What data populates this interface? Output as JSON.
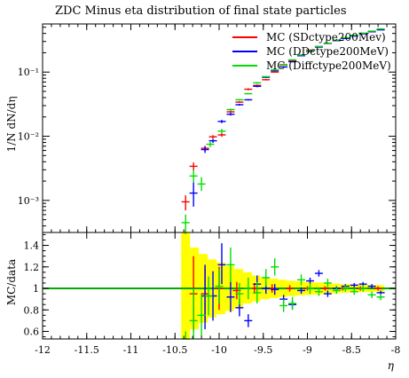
{
  "chart_data": {
    "type": "line",
    "title": "ZDC Minus eta distribution of final state particles",
    "main": {
      "ylabel": "1/N dN/dη",
      "yscale": "log",
      "ylim_log10": [
        -3.5,
        -0.25
      ],
      "ytick_labels": [
        {
          "v": -3,
          "label": "10⁻³"
        },
        {
          "v": -2,
          "label": "10⁻²"
        },
        {
          "v": -1,
          "label": "10⁻¹"
        }
      ]
    },
    "ratio": {
      "ylabel": "MC/data",
      "ylim": [
        0.53,
        1.52
      ],
      "yticks": [
        0.6,
        0.8,
        1,
        1.2,
        1.4
      ],
      "ytick_labels": [
        "0.6",
        "0.8",
        "1",
        "1.2",
        "1.4"
      ]
    },
    "x": {
      "label": "η",
      "xlim": [
        -12,
        -8
      ],
      "ticks": [
        -12,
        -11.5,
        -11,
        -10.5,
        -10,
        -9.5,
        -9,
        -8.5,
        -8
      ],
      "tick_labels": [
        "-12",
        "-11.5",
        "-11",
        "-10.5",
        "-10",
        "-9.5",
        "-9",
        "-8.5",
        "-8"
      ]
    },
    "colors": {
      "sd": "#ff0000",
      "dd": "#0000ff",
      "diff": "#00dd00",
      "band": "#ffff00",
      "unity": "#00aa00"
    },
    "series": [
      {
        "name": "MC (SDctype200Mev)",
        "key": "sd",
        "points": [
          {
            "x": -10.38,
            "y": 0.00095,
            "lo": 0.0007,
            "hi": 0.0012
          },
          {
            "x": -10.29,
            "y": 0.0034,
            "lo": 0.0029,
            "hi": 0.0039
          },
          {
            "x": -10.16,
            "y": 0.0065,
            "lo": 0.0059,
            "hi": 0.0071
          },
          {
            "x": -10.07,
            "y": 0.0098,
            "lo": 0.0092,
            "hi": 0.0104
          },
          {
            "x": -9.97,
            "y": 0.0105,
            "lo": 0.0098,
            "hi": 0.0112
          },
          {
            "x": -9.87,
            "y": 0.024,
            "lo": 0.023,
            "hi": 0.025
          },
          {
            "x": -9.77,
            "y": 0.034,
            "lo": 0.033,
            "hi": 0.035
          },
          {
            "x": -9.67,
            "y": 0.054,
            "lo": 0.052,
            "hi": 0.056
          },
          {
            "x": -9.57,
            "y": 0.062,
            "lo": 0.06,
            "hi": 0.064
          },
          {
            "x": -9.47,
            "y": 0.076,
            "lo": 0.074,
            "hi": 0.078
          },
          {
            "x": -9.37,
            "y": 0.1,
            "lo": 0.098,
            "hi": 0.102
          },
          {
            "x": -9.27,
            "y": 0.13,
            "lo": 0.128,
            "hi": 0.132
          },
          {
            "x": -9.17,
            "y": 0.15,
            "lo": 0.148,
            "hi": 0.152
          },
          {
            "x": -9.07,
            "y": 0.18,
            "lo": 0.178,
            "hi": 0.182
          },
          {
            "x": -8.97,
            "y": 0.22,
            "lo": 0.218,
            "hi": 0.222
          },
          {
            "x": -8.87,
            "y": 0.25,
            "lo": 0.248,
            "hi": 0.252
          },
          {
            "x": -8.77,
            "y": 0.28,
            "lo": 0.278,
            "hi": 0.282
          },
          {
            "x": -8.67,
            "y": 0.31,
            "lo": 0.308,
            "hi": 0.312
          },
          {
            "x": -8.57,
            "y": 0.34,
            "lo": 0.338,
            "hi": 0.342
          },
          {
            "x": -8.47,
            "y": 0.37,
            "lo": 0.368,
            "hi": 0.372
          },
          {
            "x": -8.37,
            "y": 0.4,
            "lo": 0.398,
            "hi": 0.402
          },
          {
            "x": -8.27,
            "y": 0.43,
            "lo": 0.428,
            "hi": 0.432
          },
          {
            "x": -8.17,
            "y": 0.46,
            "lo": 0.458,
            "hi": 0.462
          }
        ]
      },
      {
        "name": "MC (DDctype200MeV)",
        "key": "dd",
        "points": [
          {
            "x": -10.29,
            "y": 0.0013,
            "lo": 0.0008,
            "hi": 0.0019
          },
          {
            "x": -10.16,
            "y": 0.0062,
            "lo": 0.0055,
            "hi": 0.0069
          },
          {
            "x": -10.07,
            "y": 0.0085,
            "lo": 0.0079,
            "hi": 0.0091
          },
          {
            "x": -9.97,
            "y": 0.017,
            "lo": 0.016,
            "hi": 0.018
          },
          {
            "x": -9.87,
            "y": 0.022,
            "lo": 0.021,
            "hi": 0.023
          },
          {
            "x": -9.77,
            "y": 0.031,
            "lo": 0.03,
            "hi": 0.032
          },
          {
            "x": -9.67,
            "y": 0.037,
            "lo": 0.036,
            "hi": 0.038
          },
          {
            "x": -9.57,
            "y": 0.06,
            "lo": 0.058,
            "hi": 0.062
          },
          {
            "x": -9.47,
            "y": 0.083,
            "lo": 0.081,
            "hi": 0.085
          },
          {
            "x": -9.37,
            "y": 0.105,
            "lo": 0.103,
            "hi": 0.107
          },
          {
            "x": -9.27,
            "y": 0.12,
            "lo": 0.118,
            "hi": 0.122
          },
          {
            "x": -9.17,
            "y": 0.145,
            "lo": 0.143,
            "hi": 0.147
          },
          {
            "x": -9.07,
            "y": 0.18,
            "lo": 0.178,
            "hi": 0.182
          },
          {
            "x": -8.97,
            "y": 0.21,
            "lo": 0.208,
            "hi": 0.212
          },
          {
            "x": -8.87,
            "y": 0.245,
            "lo": 0.243,
            "hi": 0.247
          },
          {
            "x": -8.77,
            "y": 0.28,
            "lo": 0.278,
            "hi": 0.282
          },
          {
            "x": -8.67,
            "y": 0.31,
            "lo": 0.308,
            "hi": 0.312
          },
          {
            "x": -8.57,
            "y": 0.335,
            "lo": 0.333,
            "hi": 0.337
          },
          {
            "x": -8.47,
            "y": 0.365,
            "lo": 0.363,
            "hi": 0.367
          },
          {
            "x": -8.37,
            "y": 0.395,
            "lo": 0.393,
            "hi": 0.397
          },
          {
            "x": -8.27,
            "y": 0.425,
            "lo": 0.423,
            "hi": 0.427
          },
          {
            "x": -8.17,
            "y": 0.455,
            "lo": 0.453,
            "hi": 0.457
          }
        ]
      },
      {
        "name": "MC (Diffctype200MeV)",
        "key": "diff",
        "points": [
          {
            "x": -10.38,
            "y": 0.00045,
            "lo": 0.0003,
            "hi": 0.0006
          },
          {
            "x": -10.29,
            "y": 0.0024,
            "lo": 0.0019,
            "hi": 0.003
          },
          {
            "x": -10.2,
            "y": 0.0018,
            "lo": 0.0014,
            "hi": 0.0023
          },
          {
            "x": -10.1,
            "y": 0.0075,
            "lo": 0.0068,
            "hi": 0.0082
          },
          {
            "x": -9.97,
            "y": 0.012,
            "lo": 0.011,
            "hi": 0.013
          },
          {
            "x": -9.87,
            "y": 0.026,
            "lo": 0.025,
            "hi": 0.027
          },
          {
            "x": -9.77,
            "y": 0.037,
            "lo": 0.036,
            "hi": 0.038
          },
          {
            "x": -9.67,
            "y": 0.046,
            "lo": 0.045,
            "hi": 0.047
          },
          {
            "x": -9.57,
            "y": 0.068,
            "lo": 0.066,
            "hi": 0.07
          },
          {
            "x": -9.47,
            "y": 0.085,
            "lo": 0.083,
            "hi": 0.087
          },
          {
            "x": -9.37,
            "y": 0.108,
            "lo": 0.106,
            "hi": 0.11
          },
          {
            "x": -9.27,
            "y": 0.128,
            "lo": 0.126,
            "hi": 0.13
          },
          {
            "x": -9.17,
            "y": 0.155,
            "lo": 0.153,
            "hi": 0.157
          },
          {
            "x": -9.07,
            "y": 0.185,
            "lo": 0.183,
            "hi": 0.187
          },
          {
            "x": -8.97,
            "y": 0.215,
            "lo": 0.213,
            "hi": 0.217
          },
          {
            "x": -8.87,
            "y": 0.25,
            "lo": 0.248,
            "hi": 0.252
          },
          {
            "x": -8.77,
            "y": 0.282,
            "lo": 0.28,
            "hi": 0.284
          },
          {
            "x": -8.67,
            "y": 0.315,
            "lo": 0.313,
            "hi": 0.317
          },
          {
            "x": -8.57,
            "y": 0.345,
            "lo": 0.343,
            "hi": 0.347
          },
          {
            "x": -8.47,
            "y": 0.375,
            "lo": 0.373,
            "hi": 0.377
          },
          {
            "x": -8.37,
            "y": 0.405,
            "lo": 0.403,
            "hi": 0.407
          },
          {
            "x": -8.27,
            "y": 0.435,
            "lo": 0.433,
            "hi": 0.437
          },
          {
            "x": -8.17,
            "y": 0.47,
            "lo": 0.468,
            "hi": 0.472
          }
        ]
      }
    ],
    "ratio_band": [
      {
        "x0": -10.43,
        "x1": -10.33,
        "lo": 0.53,
        "hi": 1.52
      },
      {
        "x0": -10.33,
        "x1": -10.23,
        "lo": 0.62,
        "hi": 1.38
      },
      {
        "x0": -10.23,
        "x1": -10.13,
        "lo": 0.68,
        "hi": 1.32
      },
      {
        "x0": -10.13,
        "x1": -10.03,
        "lo": 0.73,
        "hi": 1.27
      },
      {
        "x0": -10.03,
        "x1": -9.93,
        "lo": 0.76,
        "hi": 1.24
      },
      {
        "x0": -9.93,
        "x1": -9.83,
        "lo": 0.79,
        "hi": 1.21
      },
      {
        "x0": -9.83,
        "x1": -9.73,
        "lo": 0.82,
        "hi": 1.18
      },
      {
        "x0": -9.73,
        "x1": -9.63,
        "lo": 0.86,
        "hi": 1.15
      },
      {
        "x0": -9.63,
        "x1": -9.53,
        "lo": 0.88,
        "hi": 1.12
      },
      {
        "x0": -9.53,
        "x1": -9.43,
        "lo": 0.9,
        "hi": 1.1
      },
      {
        "x0": -9.43,
        "x1": -9.33,
        "lo": 0.91,
        "hi": 1.09
      },
      {
        "x0": -9.33,
        "x1": -9.23,
        "lo": 0.92,
        "hi": 1.08
      },
      {
        "x0": -9.23,
        "x1": -9.13,
        "lo": 0.93,
        "hi": 1.07
      },
      {
        "x0": -9.13,
        "x1": -9.03,
        "lo": 0.935,
        "hi": 1.065
      },
      {
        "x0": -9.03,
        "x1": -8.93,
        "lo": 0.94,
        "hi": 1.06
      },
      {
        "x0": -8.93,
        "x1": -8.83,
        "lo": 0.945,
        "hi": 1.055
      },
      {
        "x0": -8.83,
        "x1": -8.73,
        "lo": 0.95,
        "hi": 1.05
      },
      {
        "x0": -8.73,
        "x1": -8.63,
        "lo": 0.955,
        "hi": 1.045
      },
      {
        "x0": -8.63,
        "x1": -8.53,
        "lo": 0.96,
        "hi": 1.04
      },
      {
        "x0": -8.53,
        "x1": -8.43,
        "lo": 0.962,
        "hi": 1.038
      },
      {
        "x0": -8.43,
        "x1": -8.33,
        "lo": 0.965,
        "hi": 1.035
      },
      {
        "x0": -8.33,
        "x1": -8.23,
        "lo": 0.968,
        "hi": 1.032
      },
      {
        "x0": -8.23,
        "x1": -8.13,
        "lo": 0.97,
        "hi": 1.03
      }
    ],
    "ratio_series": [
      {
        "key": "sd",
        "points": [
          {
            "x": -10.29,
            "y": 0.95,
            "lo": 0.6,
            "hi": 1.3
          },
          {
            "x": -10.16,
            "y": 0.95,
            "lo": 0.7,
            "hi": 1.2
          },
          {
            "x": -10.0,
            "y": 1.0,
            "lo": 0.8,
            "hi": 1.2
          },
          {
            "x": -9.8,
            "y": 0.98,
            "lo": 0.9,
            "hi": 1.06
          },
          {
            "x": -9.6,
            "y": 1.0,
            "lo": 0.95,
            "hi": 1.05
          },
          {
            "x": -9.4,
            "y": 1.0,
            "lo": 0.96,
            "hi": 1.04
          },
          {
            "x": -9.2,
            "y": 1.0,
            "lo": 0.97,
            "hi": 1.03
          },
          {
            "x": -9.0,
            "y": 1.0,
            "lo": 0.98,
            "hi": 1.02
          },
          {
            "x": -8.8,
            "y": 1.0,
            "lo": 0.98,
            "hi": 1.02
          },
          {
            "x": -8.6,
            "y": 1.0,
            "lo": 0.98,
            "hi": 1.02
          },
          {
            "x": -8.4,
            "y": 1.0,
            "lo": 0.98,
            "hi": 1.02
          },
          {
            "x": -8.2,
            "y": 1.0,
            "lo": 0.98,
            "hi": 1.02
          }
        ]
      },
      {
        "key": "dd",
        "points": [
          {
            "x": -10.16,
            "y": 0.93,
            "lo": 0.62,
            "hi": 1.22
          },
          {
            "x": -10.07,
            "y": 0.93,
            "lo": 0.7,
            "hi": 1.16
          },
          {
            "x": -9.97,
            "y": 1.22,
            "lo": 1.04,
            "hi": 1.42
          },
          {
            "x": -9.87,
            "y": 0.92,
            "lo": 0.78,
            "hi": 1.06
          },
          {
            "x": -9.77,
            "y": 0.82,
            "lo": 0.74,
            "hi": 0.9
          },
          {
            "x": -9.67,
            "y": 0.7,
            "lo": 0.64,
            "hi": 0.76
          },
          {
            "x": -9.57,
            "y": 1.04,
            "lo": 0.96,
            "hi": 1.12
          },
          {
            "x": -9.47,
            "y": 1.0,
            "lo": 0.95,
            "hi": 1.05
          },
          {
            "x": -9.37,
            "y": 0.99,
            "lo": 0.94,
            "hi": 1.04
          },
          {
            "x": -9.27,
            "y": 0.9,
            "lo": 0.86,
            "hi": 0.94
          },
          {
            "x": -9.17,
            "y": 0.85,
            "lo": 0.81,
            "hi": 0.89
          },
          {
            "x": -9.07,
            "y": 0.98,
            "lo": 0.95,
            "hi": 1.01
          },
          {
            "x": -8.97,
            "y": 1.07,
            "lo": 1.04,
            "hi": 1.1
          },
          {
            "x": -8.87,
            "y": 1.14,
            "lo": 1.11,
            "hi": 1.17
          },
          {
            "x": -8.77,
            "y": 0.95,
            "lo": 0.92,
            "hi": 0.98
          },
          {
            "x": -8.67,
            "y": 1.0,
            "lo": 0.98,
            "hi": 1.02
          },
          {
            "x": -8.57,
            "y": 1.02,
            "lo": 1.0,
            "hi": 1.04
          },
          {
            "x": -8.47,
            "y": 1.03,
            "lo": 1.01,
            "hi": 1.05
          },
          {
            "x": -8.37,
            "y": 1.04,
            "lo": 1.02,
            "hi": 1.06
          },
          {
            "x": -8.27,
            "y": 1.02,
            "lo": 1.0,
            "hi": 1.04
          },
          {
            "x": -8.17,
            "y": 0.96,
            "lo": 0.94,
            "hi": 0.98
          }
        ]
      },
      {
        "key": "diff",
        "points": [
          {
            "x": -10.38,
            "y": 0.45,
            "lo": 0.3,
            "hi": 0.6
          },
          {
            "x": -10.29,
            "y": 0.7,
            "lo": 0.4,
            "hi": 1.0
          },
          {
            "x": -10.2,
            "y": 0.75,
            "lo": 0.55,
            "hi": 0.95
          },
          {
            "x": -10.12,
            "y": 0.93,
            "lo": 0.75,
            "hi": 1.11
          },
          {
            "x": -10.0,
            "y": 1.02,
            "lo": 0.86,
            "hi": 1.18
          },
          {
            "x": -9.87,
            "y": 1.22,
            "lo": 1.06,
            "hi": 1.38
          },
          {
            "x": -9.77,
            "y": 0.95,
            "lo": 0.85,
            "hi": 1.05
          },
          {
            "x": -9.67,
            "y": 1.0,
            "lo": 0.9,
            "hi": 1.1
          },
          {
            "x": -9.57,
            "y": 0.96,
            "lo": 0.86,
            "hi": 1.06
          },
          {
            "x": -9.47,
            "y": 1.1,
            "lo": 1.02,
            "hi": 1.18
          },
          {
            "x": -9.37,
            "y": 1.2,
            "lo": 1.12,
            "hi": 1.28
          },
          {
            "x": -9.27,
            "y": 0.84,
            "lo": 0.78,
            "hi": 0.9
          },
          {
            "x": -9.17,
            "y": 0.86,
            "lo": 0.8,
            "hi": 0.92
          },
          {
            "x": -9.07,
            "y": 1.08,
            "lo": 1.03,
            "hi": 1.13
          },
          {
            "x": -8.97,
            "y": 1.0,
            "lo": 0.95,
            "hi": 1.05
          },
          {
            "x": -8.87,
            "y": 0.97,
            "lo": 0.93,
            "hi": 1.01
          },
          {
            "x": -8.77,
            "y": 1.05,
            "lo": 1.01,
            "hi": 1.09
          },
          {
            "x": -8.67,
            "y": 0.98,
            "lo": 0.95,
            "hi": 1.01
          },
          {
            "x": -8.57,
            "y": 1.0,
            "lo": 0.97,
            "hi": 1.03
          },
          {
            "x": -8.47,
            "y": 0.97,
            "lo": 0.94,
            "hi": 1.0
          },
          {
            "x": -8.37,
            "y": 1.0,
            "lo": 0.97,
            "hi": 1.03
          },
          {
            "x": -8.27,
            "y": 0.94,
            "lo": 0.91,
            "hi": 0.97
          },
          {
            "x": -8.17,
            "y": 0.92,
            "lo": 0.89,
            "hi": 0.95
          }
        ]
      }
    ]
  }
}
